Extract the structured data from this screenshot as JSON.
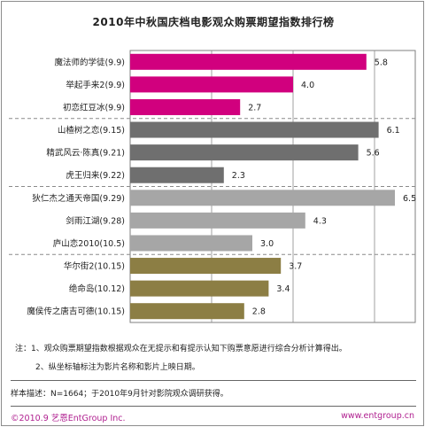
{
  "chart_data": {
    "type": "bar",
    "orientation": "horizontal",
    "title": "2010年中秋国庆档电影观众购票期望指数排行榜",
    "categories": [
      "魔法师的学徒(9.9)",
      "举起手来2(9.9)",
      "初恋红豆冰(9.9)",
      "山楂树之恋(9.15)",
      "精武风云·陈真(9.21)",
      "虎王归来(9.22)",
      "狄仁杰之通天帝国(9.29)",
      "剑雨江湖(9.28)",
      "庐山恋2010(10.5)",
      "华尔街2(10.15)",
      "绝命岛(10.12)",
      "魔侯传之唐吉可德(10.15)"
    ],
    "values": [
      5.8,
      4.0,
      2.7,
      6.1,
      5.6,
      2.3,
      6.5,
      4.3,
      3.0,
      3.7,
      3.4,
      2.8
    ],
    "value_labels": [
      "5.8",
      "4.0",
      "2.7",
      "6.1",
      "5.6",
      "2.3",
      "6.5",
      "4.3",
      "3.0",
      "3.7",
      "3.4",
      "2.8"
    ],
    "group_of_bar": [
      0,
      0,
      0,
      1,
      1,
      1,
      2,
      2,
      2,
      3,
      3,
      3
    ],
    "group_colors": [
      "#d1007e",
      "#6f6f6f",
      "#a6a6a6",
      "#8c7e44"
    ],
    "xlim": [
      0,
      7
    ],
    "gridlines_at": [
      2,
      4,
      6
    ],
    "grid": true,
    "legend": "none"
  },
  "notes": {
    "line1": "注：1、观众购票期望指数根据观众在无提示和有提示认知下购票意愿进行综合分析计算得出。",
    "line2": "2、纵坐标轴标注为影片名称和影片上映日期。"
  },
  "sample": "样本描述：N=1664；于2010年9月针对影院观众调研获得。",
  "footer": {
    "copyright": "©2010.9  艺恩EntGroup Inc.",
    "website": "www.entgroup.cn"
  }
}
